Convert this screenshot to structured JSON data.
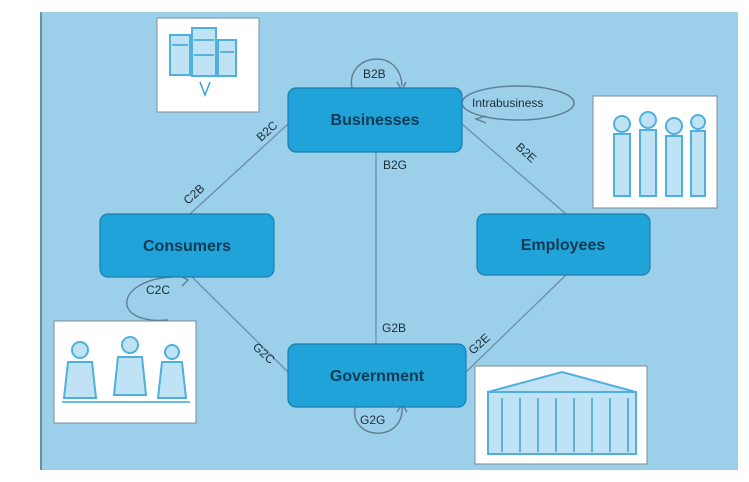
{
  "nodes": {
    "businesses": "Businesses",
    "consumers": "Consumers",
    "employees": "Employees",
    "government": "Government"
  },
  "edges": {
    "b2b": "B2B",
    "intrabusiness": "Intrabusiness",
    "b2c": "B2C",
    "c2b": "C2B",
    "b2g": "B2G",
    "g2b": "G2B",
    "b2e": "B2E",
    "g2e": "G2E",
    "g2c": "G2C",
    "c2c": "C2C",
    "g2g": "G2G"
  },
  "images": {
    "businesses_photo": "buildings-sketch",
    "employees_photo": "people-standing-sketch",
    "consumers_photo": "people-meeting-sketch",
    "government_photo": "government-building-sketch"
  },
  "colors": {
    "panel": "#9ccfe9",
    "node_fill": "#1fa3d9",
    "node_text": "#123a52",
    "edge": "#6b8fa8"
  }
}
